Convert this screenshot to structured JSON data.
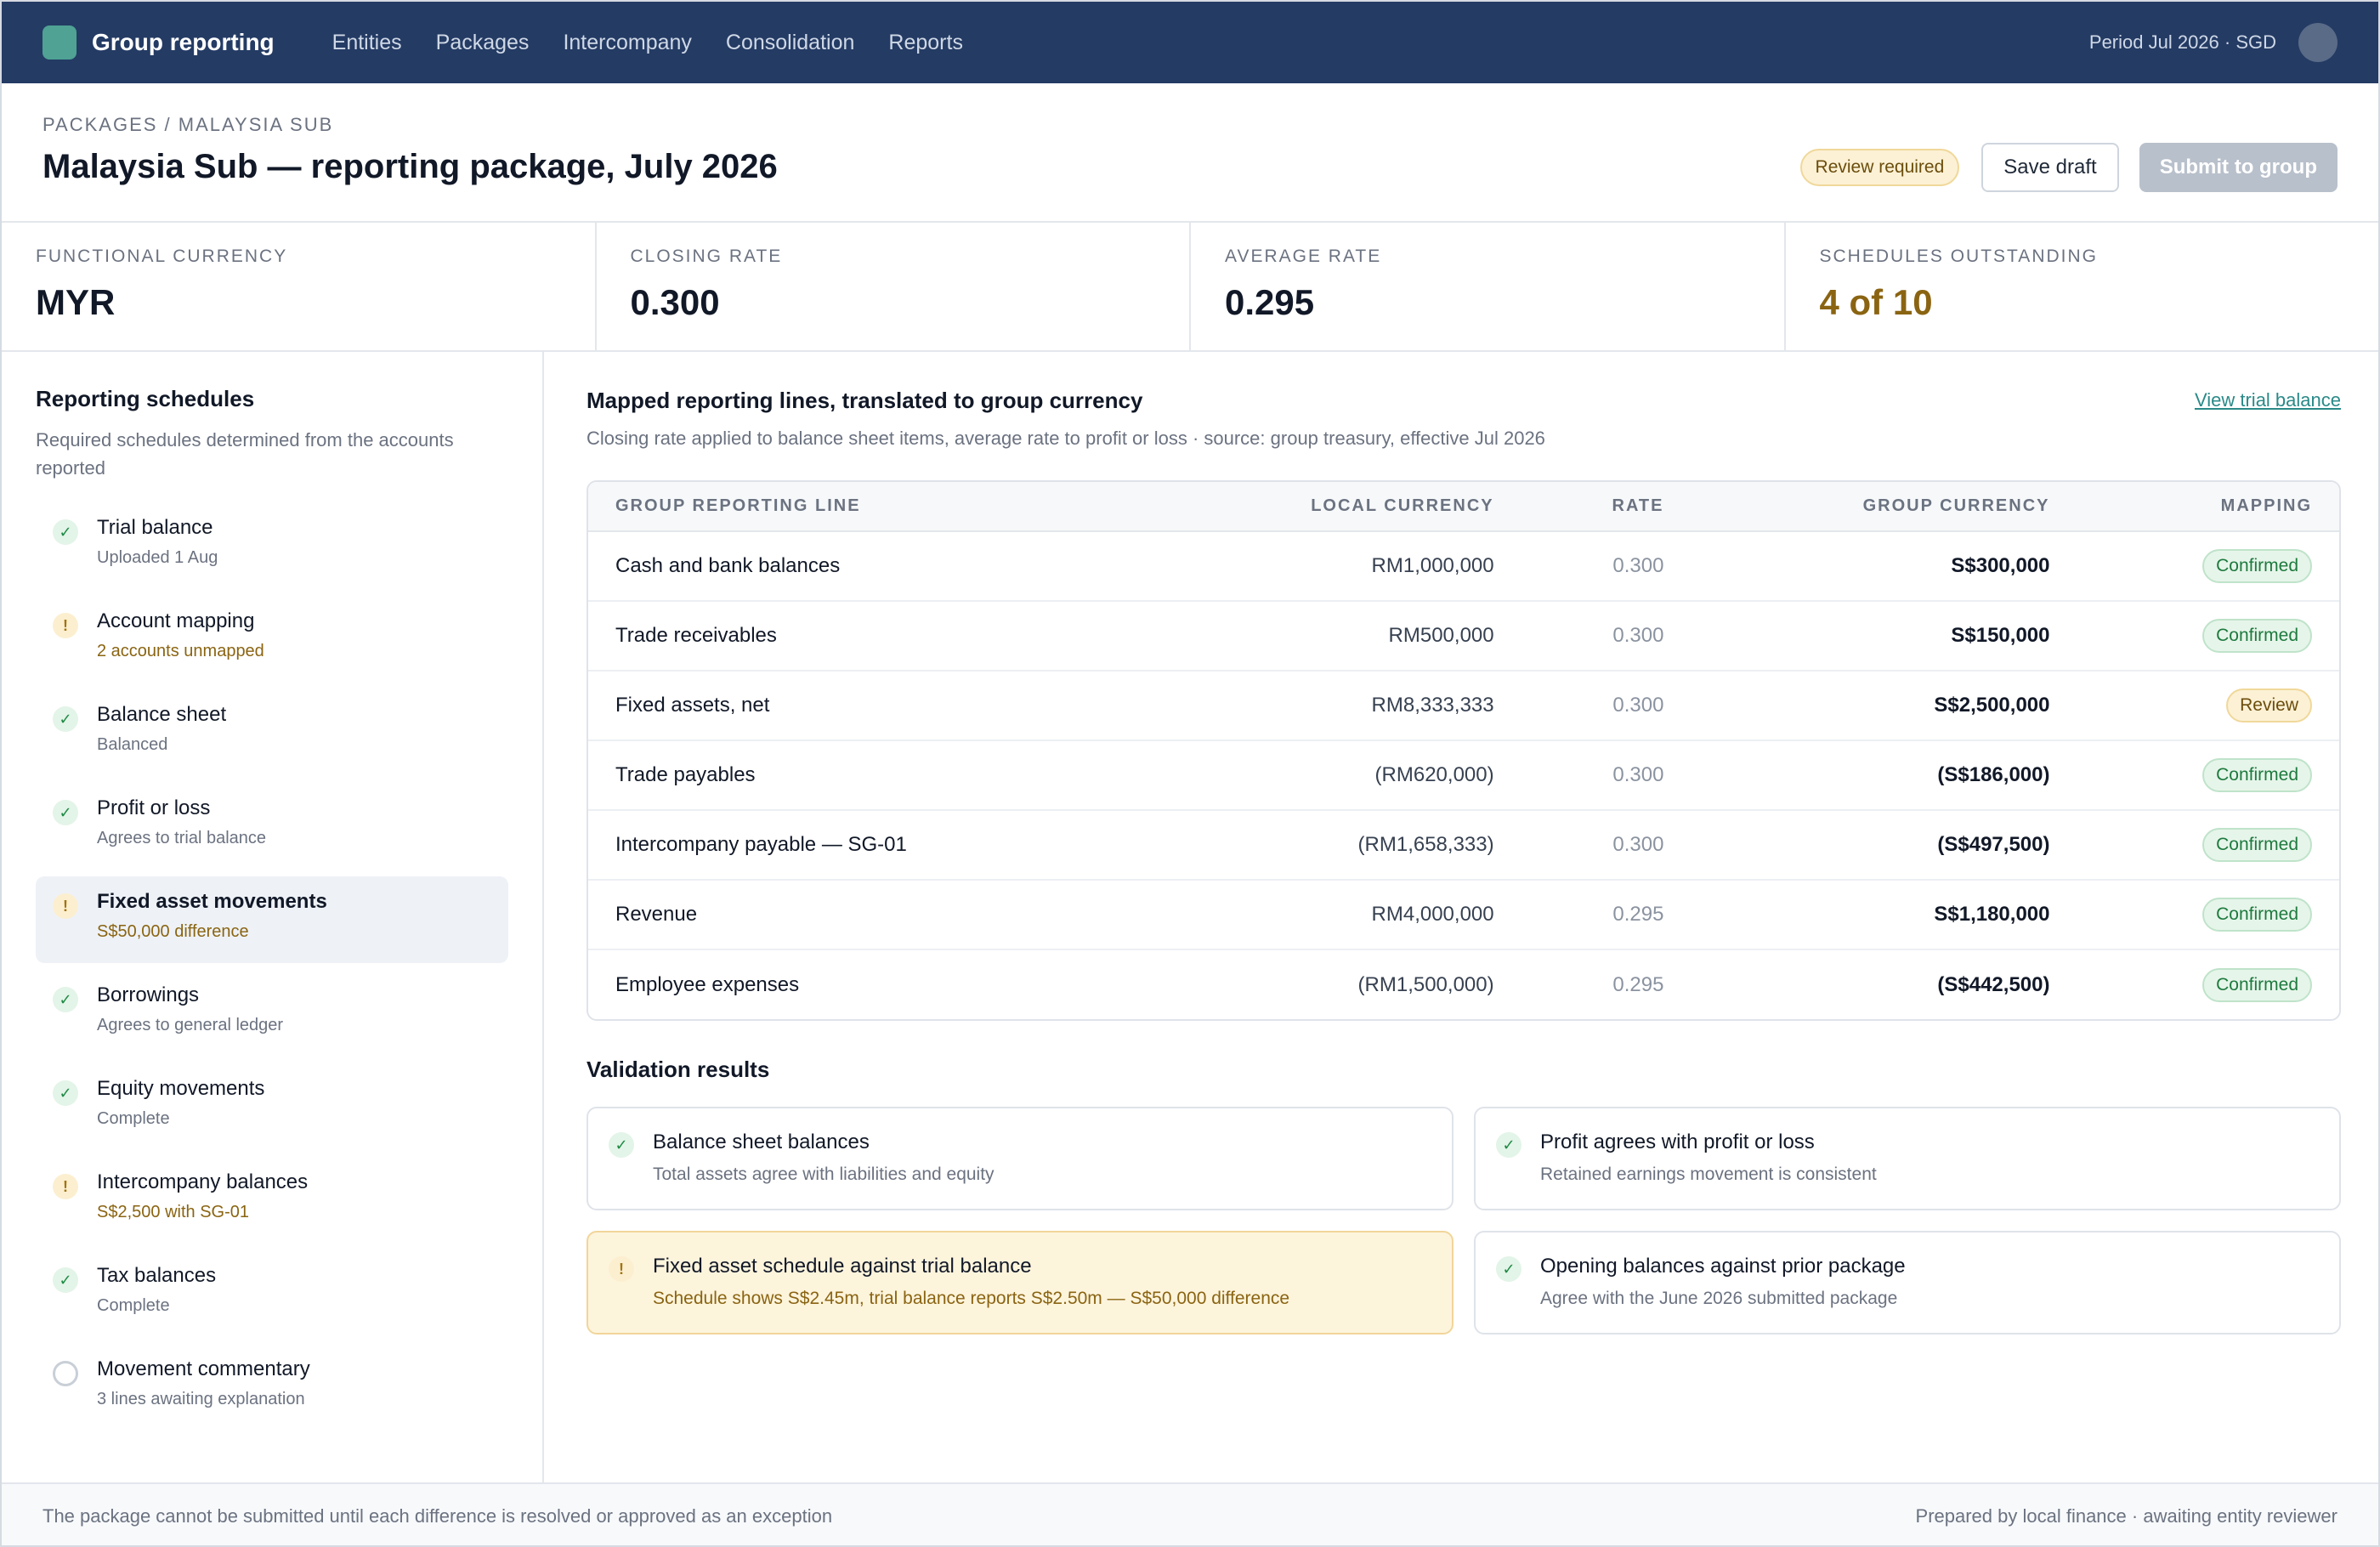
{
  "nav": {
    "brand": "Group reporting",
    "links": [
      "Entities",
      "Packages",
      "Intercompany",
      "Consolidation",
      "Reports"
    ],
    "period": "Period Jul 2026 · SGD"
  },
  "header": {
    "breadcrumb": "PACKAGES / MALAYSIA SUB",
    "title": "Malaysia Sub — reporting package, July 2026",
    "status_badge": "Review required",
    "save_label": "Save draft",
    "submit_label": "Submit to group"
  },
  "metrics": [
    {
      "label": "FUNCTIONAL CURRENCY",
      "value": "MYR"
    },
    {
      "label": "CLOSING RATE",
      "value": "0.300"
    },
    {
      "label": "AVERAGE RATE",
      "value": "0.295"
    },
    {
      "label": "SCHEDULES OUTSTANDING",
      "value": "4 of 10"
    }
  ],
  "sidebar": {
    "title": "Reporting schedules",
    "subtitle": "Required schedules determined from the accounts reported",
    "items": [
      {
        "name": "Trial balance",
        "note": "Uploaded 1 Aug",
        "status": "ok"
      },
      {
        "name": "Account mapping",
        "note": "2 accounts unmapped",
        "status": "warn"
      },
      {
        "name": "Balance sheet",
        "note": "Balanced",
        "status": "ok"
      },
      {
        "name": "Profit or loss",
        "note": "Agrees to trial balance",
        "status": "ok"
      },
      {
        "name": "Fixed asset movements",
        "note": "S$50,000 difference",
        "status": "warn"
      },
      {
        "name": "Borrowings",
        "note": "Agrees to general ledger",
        "status": "ok"
      },
      {
        "name": "Equity movements",
        "note": "Complete",
        "status": "ok"
      },
      {
        "name": "Intercompany balances",
        "note": "S$2,500 with SG-01",
        "status": "warn"
      },
      {
        "name": "Tax balances",
        "note": "Complete",
        "status": "ok"
      },
      {
        "name": "Movement commentary",
        "note": "3 lines awaiting explanation",
        "status": "empty"
      }
    ]
  },
  "main": {
    "title": "Mapped reporting lines, translated to group currency",
    "subtitle": "Closing rate applied to balance sheet items, average rate to profit or loss · source: group treasury, effective Jul 2026",
    "link": "View trial balance",
    "columns": [
      "GROUP REPORTING LINE",
      "LOCAL CURRENCY",
      "RATE",
      "GROUP CURRENCY",
      "MAPPING"
    ],
    "rows": [
      {
        "line": "Cash and bank balances",
        "local": "RM1,000,000",
        "rate": "0.300",
        "group": "S$300,000",
        "mapping": "Confirmed"
      },
      {
        "line": "Trade receivables",
        "local": "RM500,000",
        "rate": "0.300",
        "group": "S$150,000",
        "mapping": "Confirmed"
      },
      {
        "line": "Fixed assets, net",
        "local": "RM8,333,333",
        "rate": "0.300",
        "group": "S$2,500,000",
        "mapping": "Review"
      },
      {
        "line": "Trade payables",
        "local": "(RM620,000)",
        "rate": "0.300",
        "group": "(S$186,000)",
        "mapping": "Confirmed"
      },
      {
        "line": "Intercompany payable — SG-01",
        "local": "(RM1,658,333)",
        "rate": "0.300",
        "group": "(S$497,500)",
        "mapping": "Confirmed"
      },
      {
        "line": "Revenue",
        "local": "RM4,000,000",
        "rate": "0.295",
        "group": "S$1,180,000",
        "mapping": "Confirmed"
      },
      {
        "line": "Employee expenses",
        "local": "(RM1,500,000)",
        "rate": "0.295",
        "group": "(S$442,500)",
        "mapping": "Confirmed"
      }
    ]
  },
  "validation": {
    "title": "Validation results",
    "items": [
      {
        "name": "Balance sheet balances",
        "desc": "Total assets agree with liabilities and equity",
        "status": "ok"
      },
      {
        "name": "Profit agrees with profit or loss",
        "desc": "Retained earnings movement is consistent",
        "status": "ok"
      },
      {
        "name": "Fixed asset schedule against trial balance",
        "desc": "Schedule shows S$2.45m, trial balance reports S$2.50m — S$50,000 difference",
        "status": "warn"
      },
      {
        "name": "Opening balances against prior package",
        "desc": "Agree with the June 2026 submitted package",
        "status": "ok"
      }
    ]
  },
  "footer": {
    "left": "The package cannot be submitted until each difference is resolved or approved as an exception",
    "right": "Prepared by local finance · awaiting entity reviewer"
  },
  "icons": {
    "ok": "check-icon",
    "warn": "exclamation-icon",
    "empty": "empty-circle-icon"
  }
}
